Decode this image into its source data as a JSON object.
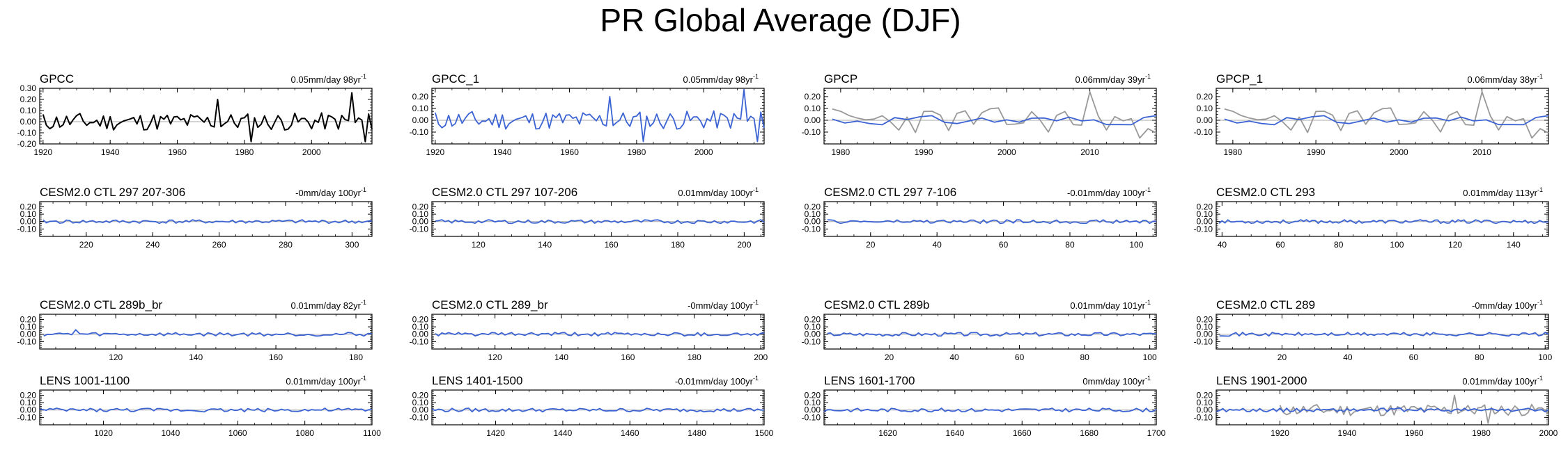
{
  "figure": {
    "title": "PR Global Average (DJF)"
  },
  "colors": {
    "model": "#3b63d4",
    "obs_overlay": "#999999",
    "obs": "#000000",
    "zero_line": "#aaaaaa"
  },
  "chart_data": [
    {
      "type": "line",
      "title": "GPCC",
      "trend": "0.05mm/day 98yr",
      "unit_exponent": "-1",
      "xlim": [
        1919,
        2018
      ],
      "ylim": [
        -0.2,
        0.3
      ],
      "yticks": [
        -0.2,
        -0.1,
        0.0,
        0.1,
        0.2,
        0.3
      ],
      "ytick_labels": [
        "-0.20",
        "-0.10",
        "0.00",
        "0.10",
        "0.20",
        "0.30"
      ],
      "xticks": [
        1920,
        1940,
        1960,
        1980,
        2000
      ],
      "series": [
        {
          "x_start": 1920,
          "step": 1,
          "amplitude": 0.08,
          "seed": 11,
          "style": "obs",
          "spikes": [
            [
              1972,
              0.2
            ],
            [
              1982,
              -0.18
            ],
            [
              2012,
              0.26
            ],
            [
              2016,
              -0.18
            ]
          ]
        }
      ]
    },
    {
      "type": "line",
      "title": "GPCC_1",
      "trend": "0.05mm/day 98yr",
      "unit_exponent": "-1",
      "xlim": [
        1919,
        2018
      ],
      "ylim": [
        -0.2,
        0.27
      ],
      "yticks": [
        -0.1,
        0.0,
        0.1,
        0.2
      ],
      "ytick_labels": [
        "-0.10",
        "0.00",
        "0.10",
        "0.20"
      ],
      "xticks": [
        1920,
        1940,
        1960,
        1980,
        2000
      ],
      "series": [
        {
          "x_start": 1920,
          "step": 1,
          "amplitude": 0.08,
          "seed": 11,
          "style": "model",
          "spikes": [
            [
              1972,
              0.2
            ],
            [
              1982,
              -0.18
            ],
            [
              2012,
              0.26
            ],
            [
              2016,
              -0.18
            ]
          ]
        }
      ]
    },
    {
      "type": "line",
      "title": "GPCP",
      "trend": "0.06mm/day 39yr",
      "unit_exponent": "-1",
      "xlim": [
        1978,
        2018
      ],
      "ylim": [
        -0.2,
        0.27
      ],
      "yticks": [
        -0.1,
        0.0,
        0.1,
        0.2
      ],
      "ytick_labels": [
        "-0.10",
        "0.00",
        "0.10",
        "0.20"
      ],
      "xticks": [
        1980,
        1990,
        2000,
        2010
      ],
      "series": [
        {
          "x_start": 1979,
          "step": 1,
          "amplitude": 0.11,
          "seed": 23,
          "style": "overlay",
          "spikes": [
            [
              2010,
              0.24
            ],
            [
              2016,
              -0.15
            ]
          ]
        },
        {
          "x_start": 1979,
          "step": 1.5,
          "amplitude": 0.04,
          "seed": 31,
          "style": "model",
          "spikes": []
        }
      ]
    },
    {
      "type": "line",
      "title": "GPCP_1",
      "trend": "0.06mm/day 38yr",
      "unit_exponent": "-1",
      "xlim": [
        1978,
        2018
      ],
      "ylim": [
        -0.2,
        0.27
      ],
      "yticks": [
        -0.1,
        0.0,
        0.1,
        0.2
      ],
      "ytick_labels": [
        "-0.10",
        "0.00",
        "0.10",
        "0.20"
      ],
      "xticks": [
        1980,
        1990,
        2000,
        2010
      ],
      "series": [
        {
          "x_start": 1979,
          "step": 1,
          "amplitude": 0.11,
          "seed": 23,
          "style": "overlay",
          "spikes": [
            [
              2010,
              0.24
            ],
            [
              2016,
              -0.15
            ]
          ]
        },
        {
          "x_start": 1979,
          "step": 1.5,
          "amplitude": 0.04,
          "seed": 31,
          "style": "model",
          "spikes": []
        }
      ]
    },
    {
      "type": "line",
      "title": "CESM2.0 CTL 297 207-306",
      "trend": "-0mm/day 100yr",
      "unit_exponent": "-1",
      "xlim": [
        206,
        306
      ],
      "ylim": [
        -0.2,
        0.27
      ],
      "yticks": [
        -0.1,
        0.0,
        0.1,
        0.2
      ],
      "ytick_labels": [
        "-0.10",
        "0.00",
        "0.10",
        "0.20"
      ],
      "xticks": [
        220,
        240,
        260,
        280,
        300
      ],
      "series": [
        {
          "x_start": 207,
          "step": 1,
          "amplitude": 0.025,
          "seed": 41,
          "style": "model",
          "spikes": []
        }
      ]
    },
    {
      "type": "line",
      "title": "CESM2.0 CTL 297 107-206",
      "trend": "0.01mm/day 100yr",
      "unit_exponent": "-1",
      "xlim": [
        106,
        206
      ],
      "ylim": [
        -0.2,
        0.27
      ],
      "yticks": [
        -0.1,
        0.0,
        0.1,
        0.2
      ],
      "ytick_labels": [
        "-0.10",
        "0.00",
        "0.10",
        "0.20"
      ],
      "xticks": [
        120,
        140,
        160,
        180,
        200
      ],
      "series": [
        {
          "x_start": 107,
          "step": 1,
          "amplitude": 0.025,
          "seed": 43,
          "style": "model",
          "spikes": []
        }
      ]
    },
    {
      "type": "line",
      "title": "CESM2.0 CTL 297 7-106",
      "trend": "-0.01mm/day 100yr",
      "unit_exponent": "-1",
      "xlim": [
        6,
        106
      ],
      "ylim": [
        -0.2,
        0.27
      ],
      "yticks": [
        -0.1,
        0.0,
        0.1,
        0.2
      ],
      "ytick_labels": [
        "-0.10",
        "0.00",
        "0.10",
        "0.20"
      ],
      "xticks": [
        20,
        40,
        60,
        80,
        100
      ],
      "series": [
        {
          "x_start": 7,
          "step": 1,
          "amplitude": 0.025,
          "seed": 47,
          "style": "model",
          "spikes": []
        }
      ]
    },
    {
      "type": "line",
      "title": "CESM2.0 CTL 293",
      "trend": "0.01mm/day 113yr",
      "unit_exponent": "-1",
      "xlim": [
        38,
        152
      ],
      "ylim": [
        -0.2,
        0.27
      ],
      "yticks": [
        -0.1,
        0.0,
        0.1,
        0.2
      ],
      "ytick_labels": [
        "-0.10",
        "0.00",
        "0.10",
        "0.20"
      ],
      "xticks": [
        40,
        60,
        80,
        100,
        120,
        140
      ],
      "series": [
        {
          "x_start": 39,
          "step": 1,
          "amplitude": 0.025,
          "seed": 53,
          "style": "model",
          "spikes": []
        }
      ]
    },
    {
      "type": "line",
      "title": "CESM2.0 CTL 289b_br",
      "trend": "0.01mm/day 82yr",
      "unit_exponent": "-1",
      "xlim": [
        101,
        184
      ],
      "ylim": [
        -0.2,
        0.27
      ],
      "yticks": [
        -0.1,
        0.0,
        0.1,
        0.2
      ],
      "ytick_labels": [
        "-0.10",
        "0.00",
        "0.10",
        "0.20"
      ],
      "xticks": [
        120,
        140,
        160,
        180
      ],
      "series": [
        {
          "x_start": 102,
          "step": 1,
          "amplitude": 0.025,
          "seed": 59,
          "style": "model",
          "spikes": [
            [
              110,
              0.06
            ]
          ]
        }
      ]
    },
    {
      "type": "line",
      "title": "CESM2.0 CTL 289_br",
      "trend": "-0mm/day 100yr",
      "unit_exponent": "-1",
      "xlim": [
        101,
        201
      ],
      "ylim": [
        -0.2,
        0.27
      ],
      "yticks": [
        -0.1,
        0.0,
        0.1,
        0.2
      ],
      "ytick_labels": [
        "-0.10",
        "0.00",
        "0.10",
        "0.20"
      ],
      "xticks": [
        120,
        140,
        160,
        180,
        200
      ],
      "series": [
        {
          "x_start": 102,
          "step": 1,
          "amplitude": 0.025,
          "seed": 61,
          "style": "model",
          "spikes": []
        }
      ]
    },
    {
      "type": "line",
      "title": "CESM2.0 CTL 289b",
      "trend": "0.01mm/day 101yr",
      "unit_exponent": "-1",
      "xlim": [
        0,
        102
      ],
      "ylim": [
        -0.2,
        0.27
      ],
      "yticks": [
        -0.1,
        0.0,
        0.1,
        0.2
      ],
      "ytick_labels": [
        "-0.10",
        "0.00",
        "0.10",
        "0.20"
      ],
      "xticks": [
        20,
        40,
        60,
        80,
        100
      ],
      "series": [
        {
          "x_start": 1,
          "step": 1,
          "amplitude": 0.025,
          "seed": 67,
          "style": "model",
          "spikes": []
        }
      ]
    },
    {
      "type": "line",
      "title": "CESM2.0 CTL 289",
      "trend": "-0mm/day 100yr",
      "unit_exponent": "-1",
      "xlim": [
        0,
        101
      ],
      "ylim": [
        -0.2,
        0.27
      ],
      "yticks": [
        -0.1,
        0.0,
        0.1,
        0.2
      ],
      "ytick_labels": [
        "-0.10",
        "0.00",
        "0.10",
        "0.20"
      ],
      "xticks": [
        20,
        40,
        60,
        80,
        100
      ],
      "series": [
        {
          "x_start": 1,
          "step": 1,
          "amplitude": 0.025,
          "seed": 71,
          "style": "model",
          "spikes": []
        }
      ]
    },
    {
      "type": "line",
      "title": "LENS 1001-1100",
      "trend": "0.01mm/day 100yr",
      "unit_exponent": "-1",
      "xlim": [
        1001,
        1100
      ],
      "ylim": [
        -0.2,
        0.27
      ],
      "yticks": [
        -0.1,
        0.0,
        0.1,
        0.2
      ],
      "ytick_labels": [
        "-0.10",
        "0.00",
        "0.10",
        "0.20"
      ],
      "xticks": [
        1020,
        1040,
        1060,
        1080,
        1100
      ],
      "series": [
        {
          "x_start": 1001,
          "step": 1,
          "amplitude": 0.025,
          "seed": 73,
          "style": "model",
          "spikes": []
        }
      ]
    },
    {
      "type": "line",
      "title": "LENS 1401-1500",
      "trend": "-0.01mm/day 100yr",
      "unit_exponent": "-1",
      "xlim": [
        1401,
        1500
      ],
      "ylim": [
        -0.2,
        0.27
      ],
      "yticks": [
        -0.1,
        0.0,
        0.1,
        0.2
      ],
      "ytick_labels": [
        "-0.10",
        "0.00",
        "0.10",
        "0.20"
      ],
      "xticks": [
        1420,
        1440,
        1460,
        1480,
        1500
      ],
      "series": [
        {
          "x_start": 1401,
          "step": 1,
          "amplitude": 0.025,
          "seed": 79,
          "style": "model",
          "spikes": []
        }
      ]
    },
    {
      "type": "line",
      "title": "LENS 1601-1700",
      "trend": "0mm/day 100yr",
      "unit_exponent": "-1",
      "xlim": [
        1601,
        1700
      ],
      "ylim": [
        -0.2,
        0.27
      ],
      "yticks": [
        -0.1,
        0.0,
        0.1,
        0.2
      ],
      "ytick_labels": [
        "-0.10",
        "0.00",
        "0.10",
        "0.20"
      ],
      "xticks": [
        1620,
        1640,
        1660,
        1680,
        1700
      ],
      "series": [
        {
          "x_start": 1601,
          "step": 1,
          "amplitude": 0.025,
          "seed": 83,
          "style": "model",
          "spikes": []
        }
      ]
    },
    {
      "type": "line",
      "title": "LENS 1901-2000",
      "trend": "0.01mm/day 100yr",
      "unit_exponent": "-1",
      "xlim": [
        1901,
        2000
      ],
      "ylim": [
        -0.2,
        0.27
      ],
      "yticks": [
        -0.1,
        0.0,
        0.1,
        0.2
      ],
      "ytick_labels": [
        "-0.10",
        "0.00",
        "0.10",
        "0.20"
      ],
      "xticks": [
        1920,
        1940,
        1960,
        1980,
        2000
      ],
      "series": [
        {
          "x_start": 1920,
          "step": 1,
          "amplitude": 0.08,
          "seed": 11,
          "style": "overlay",
          "spikes": [
            [
              1972,
              0.2
            ],
            [
              1982,
              -0.18
            ]
          ]
        },
        {
          "x_start": 1901,
          "step": 1,
          "amplitude": 0.025,
          "seed": 89,
          "style": "model",
          "spikes": []
        }
      ]
    }
  ]
}
